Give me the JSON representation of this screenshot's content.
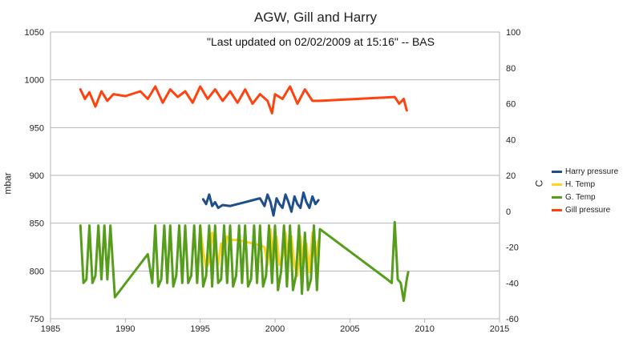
{
  "chart_data": {
    "type": "line",
    "title": "AGW, Gill and Harry",
    "subtitle": "\"Last updated on 02/02/2009 at 15:16\" -- BAS",
    "ylabel": "mbar",
    "y2label": "C",
    "xlim": [
      1985,
      2015
    ],
    "ylim": [
      750,
      1050
    ],
    "y2lim": [
      -60,
      100
    ],
    "x_ticks": [
      1985,
      1990,
      1995,
      2000,
      2005,
      2010,
      2015
    ],
    "y_ticks": [
      750,
      800,
      850,
      900,
      950,
      1000,
      1050
    ],
    "y2_ticks": [
      -60,
      -40,
      -20,
      0,
      20,
      40,
      60,
      80,
      100
    ],
    "grid": true,
    "legend_position": "right",
    "series": [
      {
        "name": "Harry pressure",
        "axis": "left",
        "color": "#1f4e8c",
        "x": [
          1995.2,
          1995.4,
          1995.6,
          1995.8,
          1996.0,
          1996.2,
          1996.5,
          1997.0,
          1997.5,
          1998.0,
          1998.5,
          1999.0,
          1999.3,
          1999.5,
          1999.7,
          1999.9,
          2000.1,
          2000.3,
          2000.5,
          2000.7,
          2000.9,
          2001.1,
          2001.3,
          2001.5,
          2001.7,
          2001.9,
          2002.1,
          2002.3,
          2002.5,
          2002.7,
          2002.9
        ],
        "y": [
          875,
          870,
          880,
          868,
          872,
          866,
          869,
          868,
          870,
          872,
          874,
          876,
          868,
          880,
          872,
          858,
          876,
          870,
          866,
          880,
          872,
          862,
          878,
          870,
          866,
          882,
          872,
          866,
          878,
          870,
          874
        ]
      },
      {
        "name": "H. Temp",
        "axis": "right",
        "color": "#ffd320",
        "x": [
          1995.0,
          1995.2,
          1995.4,
          1995.6,
          1995.8,
          1996.0,
          1996.2,
          1996.4,
          1996.6,
          1996.8,
          1997.0,
          1997.5,
          1998.0,
          1998.5,
          1999.0,
          1999.3,
          1999.5,
          1999.7,
          1999.9,
          2000.1,
          2000.3,
          2000.5,
          2000.7,
          2000.9,
          2001.1,
          2001.3,
          2001.5,
          2001.7,
          2001.9,
          2002.1,
          2002.3,
          2002.5,
          2002.7,
          2002.9
        ],
        "y": [
          -8,
          -22,
          -32,
          -28,
          -12,
          -22,
          -30,
          -18,
          -24,
          -14,
          -16,
          -16,
          -17,
          -18,
          -19,
          -20,
          -30,
          -10,
          -28,
          -14,
          -30,
          -26,
          -12,
          -28,
          -14,
          -30,
          -36,
          -14,
          -30,
          -18,
          -34,
          -12,
          -28,
          -16
        ]
      },
      {
        "name": "G. Temp",
        "axis": "right",
        "color": "#579d1c",
        "x": [
          1987.0,
          1987.2,
          1987.4,
          1987.6,
          1987.8,
          1988.0,
          1988.2,
          1988.4,
          1988.6,
          1988.8,
          1989.0,
          1989.3,
          1991.5,
          1991.8,
          1992.0,
          1992.2,
          1992.4,
          1992.6,
          1992.8,
          1993.0,
          1993.2,
          1993.4,
          1993.6,
          1993.8,
          1994.0,
          1994.2,
          1994.4,
          1994.6,
          1994.8,
          1995.0,
          1995.2,
          1995.4,
          1995.6,
          1995.8,
          1996.0,
          1996.2,
          1996.4,
          1996.6,
          1996.8,
          1997.0,
          1997.2,
          1997.4,
          1997.6,
          1997.8,
          1998.0,
          1998.2,
          1998.4,
          1998.6,
          1998.8,
          1999.0,
          1999.2,
          1999.4,
          1999.6,
          1999.8,
          2000.0,
          2000.2,
          2000.4,
          2000.6,
          2000.8,
          2001.0,
          2001.2,
          2001.4,
          2001.6,
          2001.8,
          2002.0,
          2002.2,
          2002.4,
          2002.6,
          2002.8,
          2003.0,
          2007.5,
          2007.8,
          2008.0,
          2008.2,
          2008.4,
          2008.6,
          2008.8,
          2008.9
        ],
        "y": [
          -8,
          -40,
          -38,
          -8,
          -40,
          -36,
          -8,
          -38,
          -8,
          -38,
          -8,
          -48,
          -24,
          -40,
          -8,
          -42,
          -38,
          -8,
          -40,
          -8,
          -42,
          -36,
          -8,
          -40,
          -8,
          -40,
          -36,
          -8,
          -40,
          -8,
          -42,
          -36,
          -8,
          -42,
          -8,
          -40,
          -38,
          -8,
          -40,
          -8,
          -42,
          -36,
          -8,
          -40,
          -8,
          -42,
          -38,
          -8,
          -40,
          -8,
          -42,
          -36,
          -8,
          -40,
          -8,
          -44,
          -34,
          -8,
          -42,
          -8,
          -44,
          -36,
          -8,
          -46,
          -12,
          -44,
          -38,
          -8,
          -44,
          -10,
          -38,
          -40,
          -6,
          -38,
          -40,
          -50,
          -38,
          -34
        ]
      },
      {
        "name": "Gill pressure",
        "axis": "left",
        "color": "#ff420e",
        "x": [
          1987.0,
          1987.3,
          1987.6,
          1988.0,
          1988.4,
          1988.8,
          1989.2,
          1990.0,
          1991.0,
          1991.5,
          1992.0,
          1992.5,
          1993.0,
          1993.5,
          1994.0,
          1994.5,
          1995.0,
          1995.5,
          1996.0,
          1996.5,
          1997.0,
          1997.5,
          1998.0,
          1998.5,
          1999.0,
          1999.5,
          1999.8,
          2000.0,
          2000.5,
          2001.0,
          2001.5,
          2002.0,
          2002.5,
          2003.0,
          2008.0,
          2008.3,
          2008.6,
          2008.8
        ],
        "y": [
          990,
          980,
          987,
          972,
          988,
          978,
          985,
          983,
          988,
          980,
          993,
          976,
          990,
          982,
          988,
          976,
          993,
          980,
          990,
          978,
          988,
          976,
          990,
          975,
          985,
          978,
          965,
          985,
          980,
          993,
          975,
          990,
          978,
          978,
          982,
          975,
          980,
          968
        ]
      }
    ]
  }
}
